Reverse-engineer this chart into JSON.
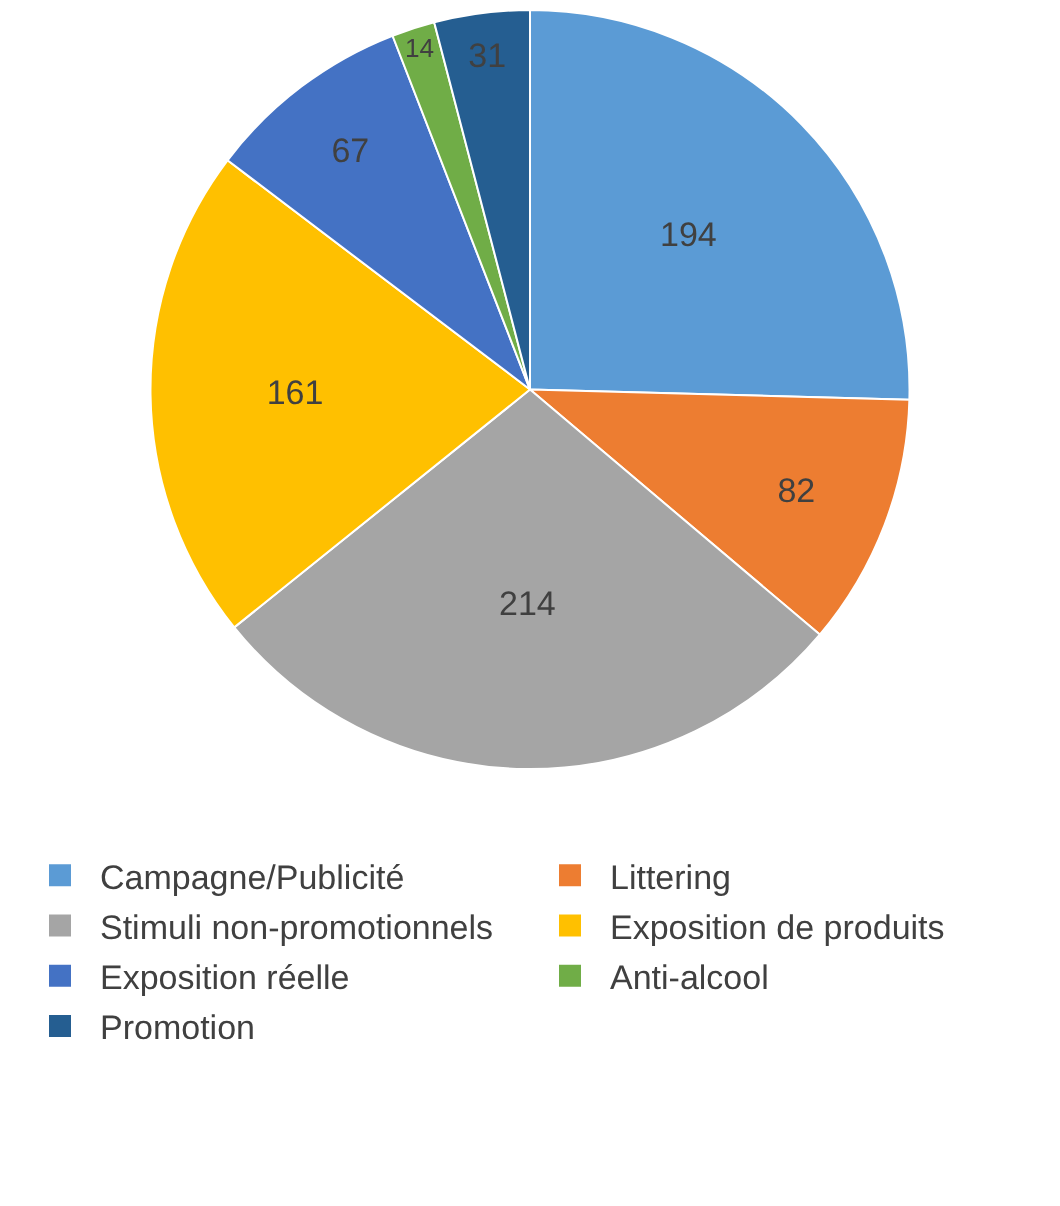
{
  "chart_data": {
    "type": "pie",
    "categories": [
      "Campagne/Publicité",
      "Littering",
      "Stimuli non-promotionnels",
      "Exposition de produits",
      "Exposition réelle",
      "Anti-alcool",
      "Promotion"
    ],
    "values": [
      194,
      82,
      214,
      161,
      67,
      14,
      31
    ],
    "colors": [
      "#5b9bd5",
      "#ed7d31",
      "#a5a5a5",
      "#ffc000",
      "#4472c4",
      "#70ad47",
      "#255e91"
    ],
    "data_labels": true,
    "legend": "bottom"
  }
}
